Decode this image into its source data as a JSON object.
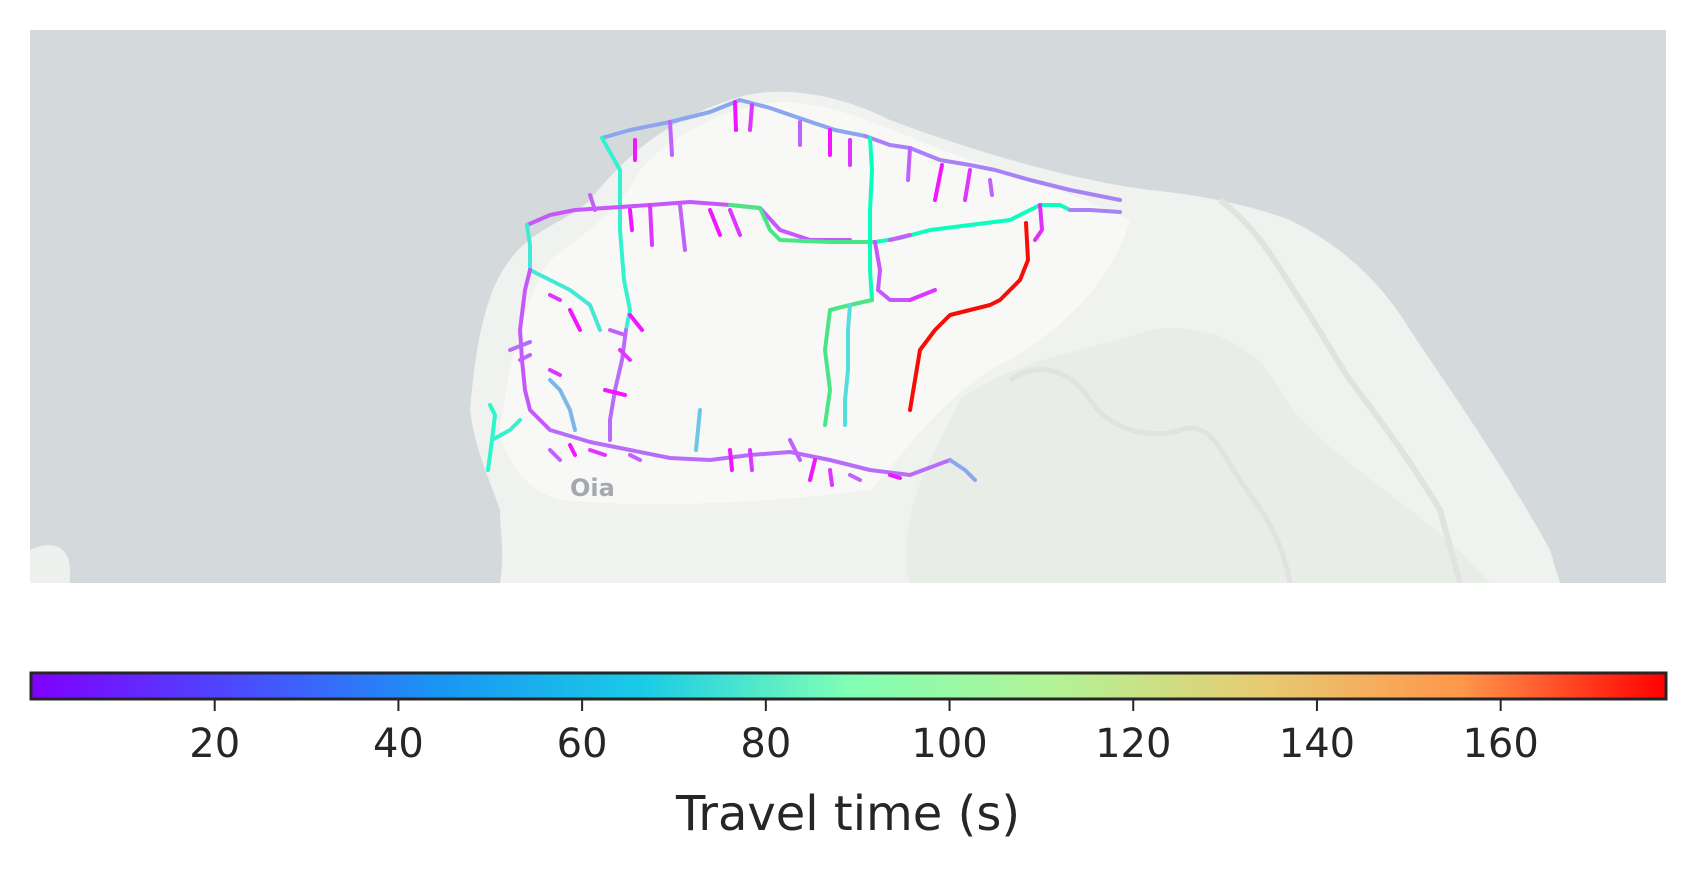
{
  "map": {
    "place_label": "Oia",
    "colors": {
      "water": "#d4dadc",
      "land": "#f0f2f0",
      "island_core": "#f8f8f7",
      "vegetation": "#e6ece6",
      "label": "#8a8f96"
    },
    "colormap": "rainbow",
    "value_range": [
      0,
      178
    ]
  },
  "colorbar": {
    "label": "Travel time (s)",
    "ticks": [
      20,
      40,
      60,
      80,
      100,
      120,
      140,
      160
    ],
    "vmin": 0,
    "vmax": 178
  }
}
